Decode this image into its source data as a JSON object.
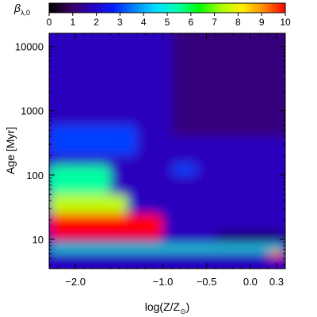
{
  "colors": {
    "frame": "#000000",
    "background": "#ffffff"
  },
  "chart_data": {
    "type": "heatmap",
    "title": "",
    "colorbar": {
      "label": "β",
      "label_subscript": "λ,0",
      "range": [
        0,
        10
      ],
      "ticks": [
        "0",
        "1",
        "2",
        "3",
        "4",
        "5",
        "6",
        "7",
        "8",
        "9",
        "10"
      ],
      "colormap": [
        "#000000",
        "#3a0060",
        "#2a00c0",
        "#0020ff",
        "#0088ff",
        "#00ddff",
        "#00ffaa",
        "#00ff00",
        "#aaff00",
        "#ffee00",
        "#ff8800",
        "#ff0000"
      ]
    },
    "xlabel": "log(Z/Z",
    "xlabel_subscript": "⊙",
    "xlabel_suffix": ")",
    "x_range": [
      -2.3,
      0.4
    ],
    "x_ticks": [
      {
        "value": -2.0,
        "label": "−2.0"
      },
      {
        "value": -1.0,
        "label": "−1.0"
      },
      {
        "value": -0.5,
        "label": "−0.5"
      },
      {
        "value": 0.0,
        "label": "0.0"
      },
      {
        "value": 0.3,
        "label": "0.3"
      }
    ],
    "x_minor_ticks": [
      -2.2,
      -1.9,
      -1.8,
      -1.7,
      -1.6,
      -1.5,
      -1.4,
      -1.3,
      -1.2,
      -1.1,
      -0.9,
      -0.8,
      -0.7,
      -0.6,
      -0.4,
      -0.3,
      -0.2,
      -0.1,
      0.1,
      0.2
    ],
    "ylabel": "Age [Myr]",
    "y_scale": "log",
    "y_range": [
      3.5,
      16000
    ],
    "y_ticks": [
      {
        "value": 10,
        "label": "10"
      },
      {
        "value": 100,
        "label": "100"
      },
      {
        "value": 1000,
        "label": "1000"
      },
      {
        "value": 10000,
        "label": "10000"
      }
    ],
    "regions": [
      {
        "x": [
          -2.3,
          -1.0
        ],
        "y": [
          10,
          25
        ],
        "value": 10
      },
      {
        "x": [
          -2.3,
          -1.4
        ],
        "y": [
          25,
          50
        ],
        "value": 7.5
      },
      {
        "x": [
          -2.3,
          -1.6
        ],
        "y": [
          50,
          140
        ],
        "value": 5.5
      },
      {
        "x": [
          -2.3,
          -1.3
        ],
        "y": [
          200,
          600
        ],
        "value": 3
      },
      {
        "x": [
          -0.9,
          -0.6
        ],
        "y": [
          100,
          150
        ],
        "value": 3
      },
      {
        "x": [
          -0.4,
          0.4
        ],
        "y": [
          10,
          13
        ],
        "value": 0.3
      },
      {
        "x": [
          0.2,
          0.4
        ],
        "y": [
          5,
          6.5
        ],
        "value": 10
      },
      {
        "x": [
          -2.3,
          0.4
        ],
        "y": [
          6.5,
          8
        ],
        "value": 5
      },
      {
        "x": [
          -2.3,
          0.4
        ],
        "y": [
          3.5,
          4
        ],
        "value": 2
      }
    ],
    "grid": false,
    "legend": "colorbar top"
  }
}
